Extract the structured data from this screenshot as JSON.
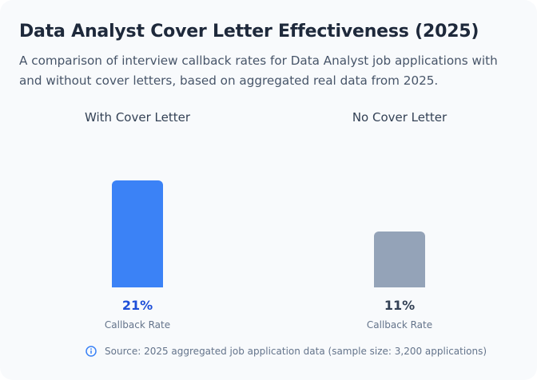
{
  "header": {
    "title": "Data Analyst Cover Letter Effectiveness (2025)",
    "subtitle": "A comparison of interview callback rates for Data Analyst job applications with and without cover letters, based on aggregated real data from 2025."
  },
  "columns": [
    {
      "label": "With Cover Letter",
      "value": 21,
      "value_label": "21%",
      "metric_label": "Callback Rate",
      "bar_color": "#3b82f6",
      "value_color": "#1d4ed8"
    },
    {
      "label": "No Cover Letter",
      "value": 11,
      "value_label": "11%",
      "metric_label": "Callback Rate",
      "bar_color": "#94a3b8",
      "value_color": "#334155"
    }
  ],
  "footer": {
    "icon": "info-icon",
    "source_text": "Source: 2025 aggregated job application data (sample size: 3,200 applications)",
    "icon_color": "#3b82f6"
  },
  "colors": {
    "card_background": "#f8fafc",
    "title": "#1e293b",
    "subtitle": "#475569",
    "accent": "#3b82f6",
    "muted": "#94a3b8"
  },
  "chart_data": {
    "type": "bar",
    "title": "Data Analyst Cover Letter Effectiveness (2025)",
    "subtitle": "A comparison of interview callback rates for Data Analyst job applications with and without cover letters, based on aggregated real data from 2025.",
    "categories": [
      "With Cover Letter",
      "No Cover Letter"
    ],
    "values": [
      21,
      11
    ],
    "value_labels": [
      "21%",
      "11%"
    ],
    "xlabel": "",
    "ylabel": "Callback Rate",
    "unit": "%",
    "grid": false,
    "legend": "none",
    "bar_colors": [
      "#3b82f6",
      "#94a3b8"
    ],
    "annotations": [
      "Source: 2025 aggregated job application data (sample size: 3,200 applications)"
    ]
  }
}
